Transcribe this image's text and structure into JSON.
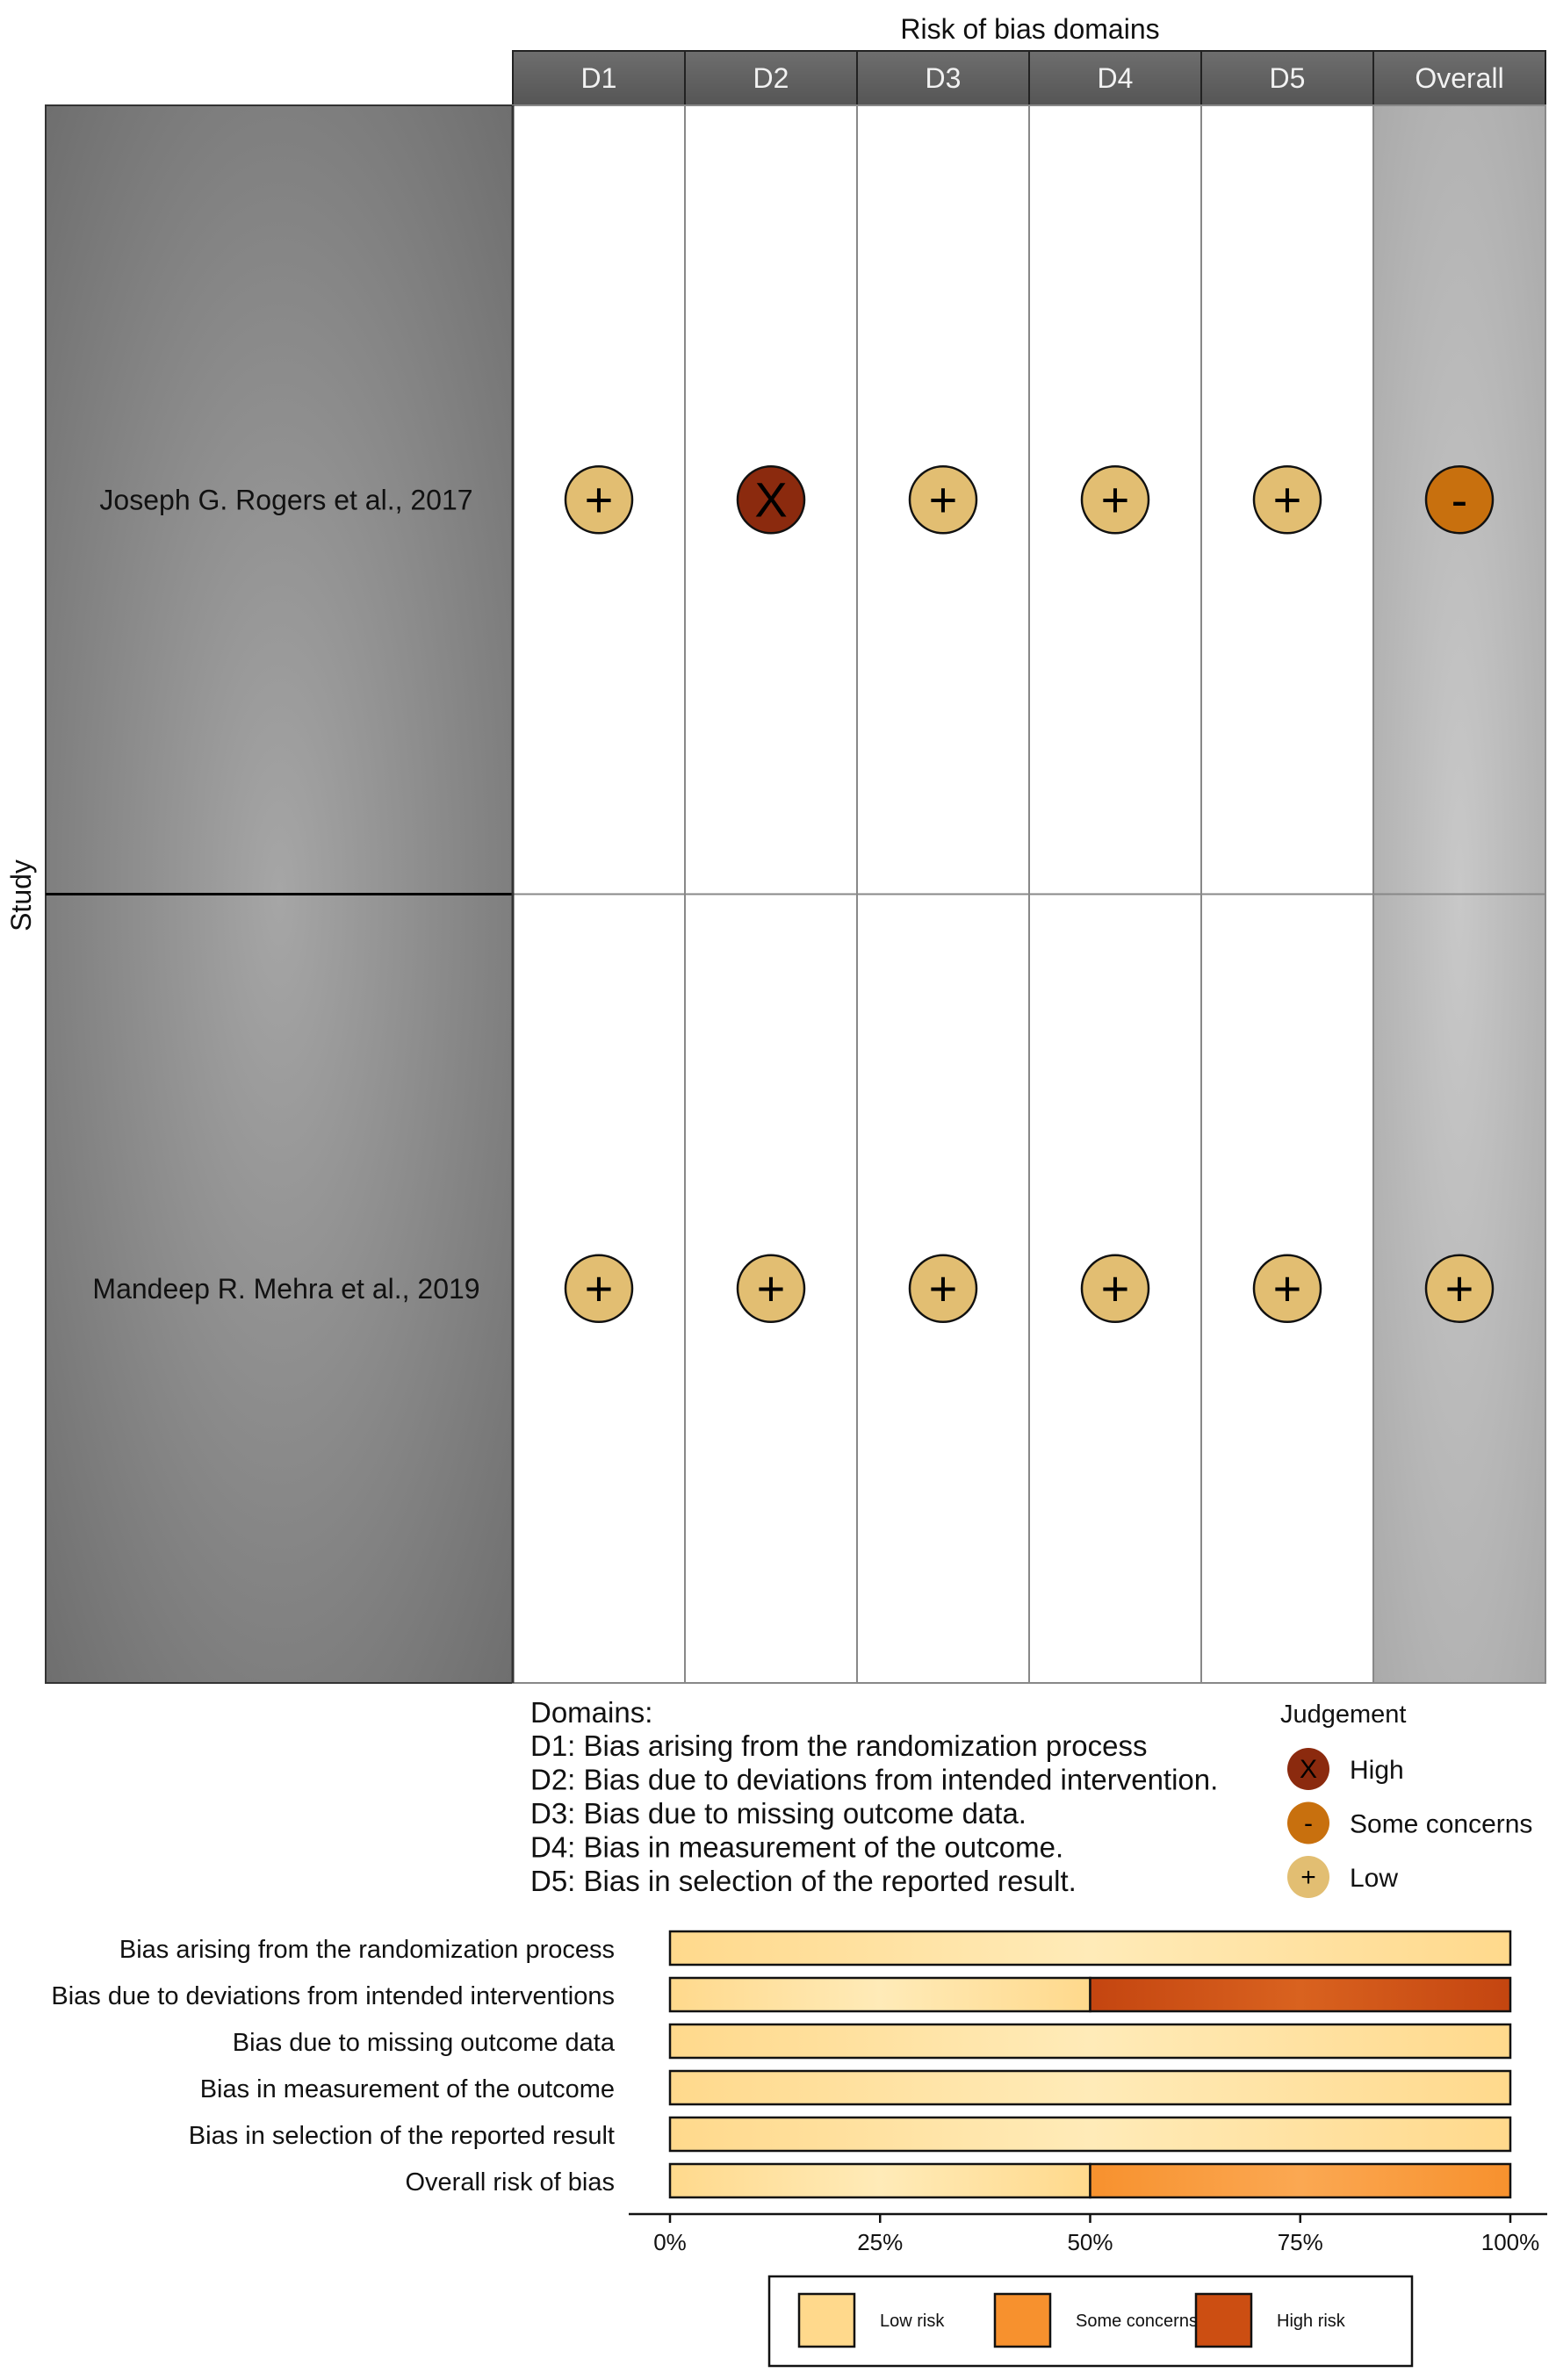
{
  "chart_data": [
    {
      "type": "table",
      "title": "Risk of bias domains",
      "row_axis_label": "Study",
      "columns": [
        "D1",
        "D2",
        "D3",
        "D4",
        "D5",
        "Overall"
      ],
      "rows": [
        {
          "study": "Joseph G. Rogers et al., 2017",
          "judgements": [
            "Low",
            "High",
            "Low",
            "Low",
            "Low",
            "Some concerns"
          ]
        },
        {
          "study": "Mandeep R. Mehra  et al., 2019",
          "judgements": [
            "Low",
            "Low",
            "Low",
            "Low",
            "Low",
            "Low"
          ]
        }
      ],
      "symbols": {
        "Low": "+",
        "High": "X",
        "Some concerns": "-"
      },
      "domains_title": "Domains:",
      "domains": [
        "D1: Bias arising from the randomization process",
        "D2: Bias due to deviations from intended intervention.",
        "D3: Bias due to missing outcome data.",
        "D4: Bias in measurement of the outcome.",
        "D5: Bias in selection of the reported result."
      ],
      "legend_title": "Judgement",
      "legend": [
        {
          "label": "High",
          "symbol": "X",
          "color": "#8B2A0E"
        },
        {
          "label": "Some concerns",
          "symbol": "-",
          "color": "#C8700E"
        },
        {
          "label": "Low",
          "symbol": "+",
          "color": "#E2BE72"
        }
      ],
      "legend_placement": "bottom-right"
    },
    {
      "type": "bar",
      "orientation": "horizontal",
      "stacked": true,
      "categories": [
        "Bias arising from the randomization process",
        "Bias due to deviations from intended interventions",
        "Bias due to missing outcome data",
        "Bias in measurement of the outcome",
        "Bias in selection of the reported result",
        "Overall risk of bias"
      ],
      "series": [
        {
          "name": "Low risk",
          "color": "#FFD98C",
          "values": [
            100,
            50,
            100,
            100,
            100,
            50
          ]
        },
        {
          "name": "Some concerns",
          "color": "#F7912E",
          "values": [
            0,
            0,
            0,
            0,
            0,
            50
          ]
        },
        {
          "name": "High risk",
          "color": "#CC4E12",
          "values": [
            0,
            50,
            0,
            0,
            0,
            0
          ]
        }
      ],
      "xlim": [
        0,
        100
      ],
      "xticks": [
        "0%",
        "25%",
        "50%",
        "75%",
        "100%"
      ],
      "legend_placement": "bottom"
    }
  ]
}
